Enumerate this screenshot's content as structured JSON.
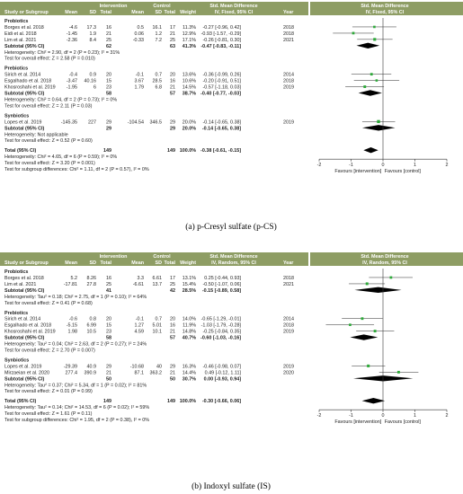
{
  "columns": {
    "study": "Study or Subgroup",
    "intervention": "Intervention",
    "control": "Control",
    "mean": "Mean",
    "sd": "SD",
    "total": "Total",
    "weight": "Weight",
    "smd_fixed": "Std. Mean Difference",
    "ci_fixed": "IV, Fixed, 95% CI",
    "ci_random": "IV, Random, 95% CI",
    "year": "Year"
  },
  "colors": {
    "header_bg": "#8e9d64",
    "point": "#2eaa3a",
    "diamond": "#000000"
  },
  "panels": [
    {
      "caption": "(a) p-Cresyl sulfate (p-CS)",
      "method_header": "IV, Fixed, 95% CI",
      "favours_left": "Favours [intervention]",
      "favours_right": "Favours [control]",
      "axis": {
        "min": -2,
        "max": 2,
        "ticks": [
          "-2",
          "-1",
          "0",
          "1",
          "2"
        ]
      },
      "groups": [
        {
          "name": "Probiotics",
          "studies": [
            {
              "name": "Borges et al. 2018",
              "im": "-4.6",
              "isd": "17.3",
              "in": "16",
              "cm": "0.5",
              "csd": "16.1",
              "cn": "17",
              "w": "11.3%",
              "ci": "-0.27 [-0.96, 0.42]",
              "year": "2018",
              "est": -0.27,
              "lo": -0.96,
              "hi": 0.42,
              "wt": 11.3
            },
            {
              "name": "Eidi et al. 2018",
              "im": "-1.45",
              "isd": "1.9",
              "in": "21",
              "cm": "0.06",
              "csd": "1.2",
              "cn": "21",
              "w": "12.9%",
              "ci": "-0.93 [-1.57, -0.29]",
              "year": "2018",
              "est": -0.93,
              "lo": -1.57,
              "hi": -0.29,
              "wt": 12.9
            },
            {
              "name": "Lim et al. 2021",
              "im": "-2.36",
              "isd": "8.4",
              "in": "25",
              "cm": "-0.33",
              "csd": "7.2",
              "cn": "25",
              "w": "17.1%",
              "ci": "-0.26 [-0.81, 0.30]",
              "year": "2021",
              "est": -0.26,
              "lo": -0.81,
              "hi": 0.3,
              "wt": 17.1
            }
          ],
          "subtotal": {
            "label": "Subtotal (95% CI)",
            "in": "62",
            "cn": "63",
            "w": "41.3%",
            "ci": "-0.47 [-0.83, -0.11]",
            "est": -0.47,
            "lo": -0.83,
            "hi": -0.11
          },
          "heterogeneity": "Heterogeneity: Chi² = 2.90, df = 2 (P = 0.23); I² = 31%",
          "overall": "Test for overall effect: Z = 2.58 (P = 0.010)"
        },
        {
          "name": "Prebiotics",
          "studies": [
            {
              "name": "Sirich et al. 2014",
              "im": "-0.4",
              "isd": "0.9",
              "in": "20",
              "cm": "-0.1",
              "csd": "0.7",
              "cn": "20",
              "w": "13.6%",
              "ci": "-0.36 [-0.99, 0.26]",
              "year": "2014",
              "est": -0.36,
              "lo": -0.99,
              "hi": 0.26,
              "wt": 13.6
            },
            {
              "name": "Esgalhado et al. 2018",
              "im": "-3.47",
              "isd": "40.16",
              "in": "15",
              "cm": "3.67",
              "csd": "28.5",
              "cn": "16",
              "w": "10.6%",
              "ci": "-0.20 [-0.91, 0.51]",
              "year": "2018",
              "est": -0.2,
              "lo": -0.91,
              "hi": 0.51,
              "wt": 10.6
            },
            {
              "name": "Khosroshahi et al. 2019",
              "im": "-1.95",
              "isd": "6",
              "in": "23",
              "cm": "1.79",
              "csd": "6.8",
              "cn": "21",
              "w": "14.5%",
              "ci": "-0.57 [-1.18, 0.03]",
              "year": "2019",
              "est": -0.57,
              "lo": -1.18,
              "hi": 0.03,
              "wt": 14.5
            }
          ],
          "subtotal": {
            "label": "Subtotal (95% CI)",
            "in": "58",
            "cn": "57",
            "w": "38.7%",
            "ci": "-0.40 [-0.77, -0.03]",
            "est": -0.4,
            "lo": -0.77,
            "hi": -0.03
          },
          "heterogeneity": "Heterogeneity: Chi² = 0.64, df = 2 (P = 0.73); I² = 0%",
          "overall": "Test for overall effect: Z = 2.11 (P = 0.03)"
        },
        {
          "name": "Synbiotics",
          "studies": [
            {
              "name": "Lopes et al. 2019",
              "im": "-145.35",
              "isd": "227",
              "in": "29",
              "cm": "-104.54",
              "csd": "346.5",
              "cn": "29",
              "w": "20.0%",
              "ci": "-0.14 [-0.65, 0.38]",
              "year": "2019",
              "est": -0.14,
              "lo": -0.65,
              "hi": 0.38,
              "wt": 20.0
            }
          ],
          "subtotal": {
            "label": "Subtotal (95% CI)",
            "in": "29",
            "cn": "29",
            "w": "20.0%",
            "ci": "-0.14 [-0.65, 0.38]",
            "est": -0.14,
            "lo": -0.65,
            "hi": 0.38
          },
          "heterogeneity": "Heterogeneity: Not applicable",
          "overall": "Test for overall effect: Z = 0.52 (P = 0.60)"
        }
      ],
      "total": {
        "label": "Total (95% CI)",
        "in": "149",
        "cn": "149",
        "w": "100.0%",
        "ci": "-0.38 [-0.61, -0.15]",
        "est": -0.38,
        "lo": -0.61,
        "hi": -0.15
      },
      "footer": [
        "Heterogeneity: Chi² = 4.65, df = 6 (P = 0.59); I² = 0%",
        "Test for overall effect: Z = 3.20 (P = 0.001)",
        "Test for subgroup differences: Chi² = 1.11, df = 2 (P = 0.57), I² = 0%"
      ]
    },
    {
      "caption": "(b) Indoxyl sulfate (IS)",
      "method_header": "IV, Random, 95% CI",
      "favours_left": "Favours [intervention]",
      "favours_right": "Favours [control]",
      "axis": {
        "min": -2,
        "max": 2,
        "ticks": [
          "-2",
          "-1",
          "0",
          "1",
          "2"
        ]
      },
      "groups": [
        {
          "name": "Probiotics",
          "studies": [
            {
              "name": "Borges et al. 2018",
              "im": "5.2",
              "isd": "8.26",
              "in": "16",
              "cm": "3.3",
              "csd": "6.61",
              "cn": "17",
              "w": "13.1%",
              "ci": "0.25 [-0.44, 0.93]",
              "year": "2018",
              "est": 0.25,
              "lo": -0.44,
              "hi": 0.93,
              "wt": 13.1
            },
            {
              "name": "Lim et al. 2021",
              "im": "-17.81",
              "isd": "27.8",
              "in": "25",
              "cm": "-6.61",
              "csd": "13.7",
              "cn": "25",
              "w": "15.4%",
              "ci": "-0.50 [-1.07, 0.06]",
              "year": "2021",
              "est": -0.5,
              "lo": -1.07,
              "hi": 0.06,
              "wt": 15.4
            }
          ],
          "subtotal": {
            "label": "Subtotal (95% CI)",
            "in": "41",
            "cn": "42",
            "w": "28.5%",
            "ci": "-0.15 [-0.89, 0.58]",
            "est": -0.15,
            "lo": -0.89,
            "hi": 0.58
          },
          "heterogeneity": "Heterogeneity: Tau² = 0.18; Chi² = 2.75, df = 1 (P = 0.10); I² = 64%",
          "overall": "Test for overall effect: Z = 0.41 (P = 0.68)"
        },
        {
          "name": "Prebiotics",
          "studies": [
            {
              "name": "Sirich et al. 2014",
              "im": "-0.6",
              "isd": "0.8",
              "in": "20",
              "cm": "-0.1",
              "csd": "0.7",
              "cn": "20",
              "w": "14.0%",
              "ci": "-0.65 [-1.29, -0.01]",
              "year": "2014",
              "est": -0.65,
              "lo": -1.29,
              "hi": -0.01,
              "wt": 14.0
            },
            {
              "name": "Esgalhado et al. 2018",
              "im": "-5.15",
              "isd": "6.99",
              "in": "15",
              "cm": "1.27",
              "csd": "5.01",
              "cn": "16",
              "w": "11.9%",
              "ci": "-1.03 [-1.79, -0.28]",
              "year": "2018",
              "est": -1.03,
              "lo": -1.79,
              "hi": -0.28,
              "wt": 11.9
            },
            {
              "name": "Khosroshahi et al. 2019",
              "im": "1.98",
              "isd": "10.5",
              "in": "23",
              "cm": "4.59",
              "csd": "10.1",
              "cn": "21",
              "w": "14.8%",
              "ci": "-0.25 [-0.84, 0.35]",
              "year": "2019",
              "est": -0.25,
              "lo": -0.84,
              "hi": 0.35,
              "wt": 14.8
            }
          ],
          "subtotal": {
            "label": "Subtotal (95% CI)",
            "in": "58",
            "cn": "57",
            "w": "40.7%",
            "ci": "-0.60 [-1.03, -0.16]",
            "est": -0.6,
            "lo": -1.03,
            "hi": -0.16
          },
          "heterogeneity": "Heterogeneity: Tau² = 0.04; Chi² = 2.63, df = 2 (P = 0.27); I² = 24%",
          "overall": "Test for overall effect: Z = 2.70 (P = 0.007)"
        },
        {
          "name": "Synbiotics",
          "studies": [
            {
              "name": "Lopes et al. 2019",
              "im": "-29.39",
              "isd": "40.9",
              "in": "29",
              "cm": "-10.68",
              "csd": "40",
              "cn": "29",
              "w": "16.3%",
              "ci": "-0.46 [-0.98, 0.07]",
              "year": "2019",
              "est": -0.46,
              "lo": -0.98,
              "hi": 0.07,
              "wt": 16.3
            },
            {
              "name": "Mirzaeian et al. 2020",
              "im": "277.4",
              "isd": "390.9",
              "in": "21",
              "cm": "87.1",
              "csd": "363.2",
              "cn": "21",
              "w": "14.4%",
              "ci": "0.49 [-0.12, 1.11]",
              "year": "2020",
              "est": 0.49,
              "lo": -0.12,
              "hi": 1.11,
              "wt": 14.4
            }
          ],
          "subtotal": {
            "label": "Subtotal (95% CI)",
            "in": "50",
            "cn": "50",
            "w": "30.7%",
            "ci": "0.00 [-0.93, 0.94]",
            "est": 0.0,
            "lo": -0.93,
            "hi": 0.94
          },
          "heterogeneity": "Heterogeneity: Tau² = 0.37; Chi² = 5.34, df = 1 (P = 0.02); I² = 81%",
          "overall": "Test for overall effect: Z = 0.01 (P = 0.99)"
        }
      ],
      "total": {
        "label": "Total (95% CI)",
        "in": "149",
        "cn": "149",
        "w": "100.0%",
        "ci": "-0.30 [-0.66, 0.06]",
        "est": -0.3,
        "lo": -0.66,
        "hi": 0.06
      },
      "footer": [
        "Heterogeneity: Tau² = 0.14; Chi² = 14.53, df = 6 (P = 0.02); I² = 59%",
        "Test for overall effect: Z = 1.61 (P = 0.11)",
        "Test for subgroup differences: Chi² = 1.95, df = 2 (P = 0.38), I² = 0%"
      ]
    }
  ],
  "chart_data": [
    {
      "type": "forest",
      "title": "(a) p-Cresyl sulfate (p-CS)",
      "xlim": [
        -2,
        2
      ],
      "ticks": [
        -2,
        -1,
        0,
        1,
        2
      ],
      "favours": [
        "Favours [intervention]",
        "Favours [control]"
      ],
      "studies": [
        {
          "label": "Borges et al. 2018",
          "smd": -0.27,
          "lo": -0.96,
          "hi": 0.42,
          "weight": 11.3
        },
        {
          "label": "Eidi et al. 2018",
          "smd": -0.93,
          "lo": -1.57,
          "hi": -0.29,
          "weight": 12.9
        },
        {
          "label": "Lim et al. 2021",
          "smd": -0.26,
          "lo": -0.81,
          "hi": 0.3,
          "weight": 17.1
        },
        {
          "label": "Sirich et al. 2014",
          "smd": -0.36,
          "lo": -0.99,
          "hi": 0.26,
          "weight": 13.6
        },
        {
          "label": "Esgalhado et al. 2018",
          "smd": -0.2,
          "lo": -0.91,
          "hi": 0.51,
          "weight": 10.6
        },
        {
          "label": "Khosroshahi et al. 2019",
          "smd": -0.57,
          "lo": -1.18,
          "hi": 0.03,
          "weight": 14.5
        },
        {
          "label": "Lopes et al. 2019",
          "smd": -0.14,
          "lo": -0.65,
          "hi": 0.38,
          "weight": 20.0
        }
      ],
      "subtotals": [
        {
          "label": "Probiotics",
          "smd": -0.47,
          "lo": -0.83,
          "hi": -0.11
        },
        {
          "label": "Prebiotics",
          "smd": -0.4,
          "lo": -0.77,
          "hi": -0.03
        },
        {
          "label": "Synbiotics",
          "smd": -0.14,
          "lo": -0.65,
          "hi": 0.38
        }
      ],
      "total": {
        "smd": -0.38,
        "lo": -0.61,
        "hi": -0.15
      }
    },
    {
      "type": "forest",
      "title": "(b) Indoxyl sulfate (IS)",
      "xlim": [
        -2,
        2
      ],
      "ticks": [
        -2,
        -1,
        0,
        1,
        2
      ],
      "favours": [
        "Favours [intervention]",
        "Favours [control]"
      ],
      "studies": [
        {
          "label": "Borges et al. 2018",
          "smd": 0.25,
          "lo": -0.44,
          "hi": 0.93,
          "weight": 13.1
        },
        {
          "label": "Lim et al. 2021",
          "smd": -0.5,
          "lo": -1.07,
          "hi": 0.06,
          "weight": 15.4
        },
        {
          "label": "Sirich et al. 2014",
          "smd": -0.65,
          "lo": -1.29,
          "hi": -0.01,
          "weight": 14.0
        },
        {
          "label": "Esgalhado et al. 2018",
          "smd": -1.03,
          "lo": -1.79,
          "hi": -0.28,
          "weight": 11.9
        },
        {
          "label": "Khosroshahi et al. 2019",
          "smd": -0.25,
          "lo": -0.84,
          "hi": 0.35,
          "weight": 14.8
        },
        {
          "label": "Lopes et al. 2019",
          "smd": -0.46,
          "lo": -0.98,
          "hi": 0.07,
          "weight": 16.3
        },
        {
          "label": "Mirzaeian et al. 2020",
          "smd": 0.49,
          "lo": -0.12,
          "hi": 1.11,
          "weight": 14.4
        }
      ],
      "subtotals": [
        {
          "label": "Probiotics",
          "smd": -0.15,
          "lo": -0.89,
          "hi": 0.58
        },
        {
          "label": "Prebiotics",
          "smd": -0.6,
          "lo": -1.03,
          "hi": -0.16
        },
        {
          "label": "Synbiotics",
          "smd": 0.0,
          "lo": -0.93,
          "hi": 0.94
        }
      ],
      "total": {
        "smd": -0.3,
        "lo": -0.66,
        "hi": 0.06
      }
    }
  ]
}
